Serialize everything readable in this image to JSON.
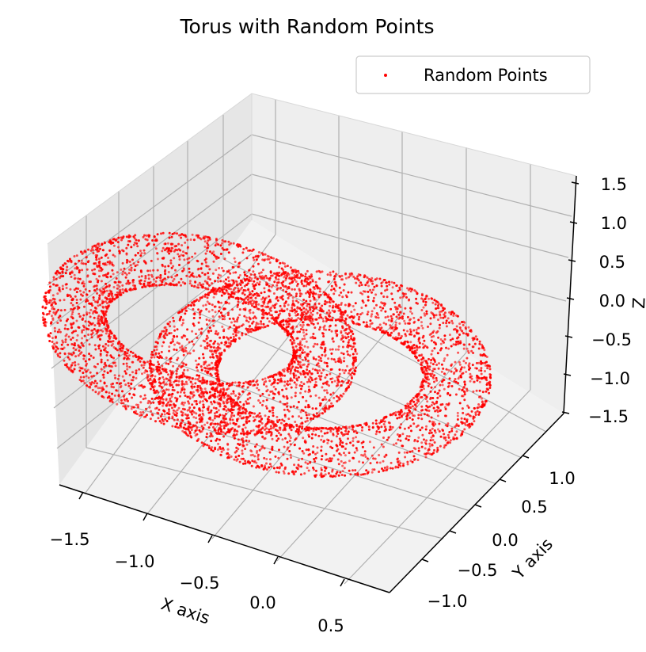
{
  "chart_data": {
    "type": "scatter",
    "projection": "3d",
    "title": "Torus with Random Points",
    "xlabel": "X axis",
    "ylabel": "Y axis",
    "zlabel": "Z",
    "xlim": [
      -1.5,
      0.6
    ],
    "ylim": [
      -1.2,
      1.2
    ],
    "zlim": [
      -1.5,
      1.5
    ],
    "x_ticks": [
      "−1.5",
      "−1.0",
      "−0.5",
      "0.0",
      "0.5"
    ],
    "y_ticks": [
      "−1.0",
      "−0.5",
      "0.0",
      "0.5",
      "1.0"
    ],
    "z_ticks": [
      "−1.5",
      "−1.0",
      "−0.5",
      "0.0",
      "0.5",
      "1.0",
      "1.5"
    ],
    "grid": true,
    "legend_position": "top-right",
    "series": [
      {
        "name": "Random Points",
        "color": "#ff0000",
        "marker": "point",
        "point_count": 6000,
        "description": "dense cloud of random points on two interlocking tori"
      }
    ]
  },
  "colors": {
    "pane_back": "#eeeeee",
    "pane_side": "#e6e6e6",
    "pane_floor": "#f2f2f2",
    "grid": "#b0b0b0",
    "points": "#ff0000"
  }
}
